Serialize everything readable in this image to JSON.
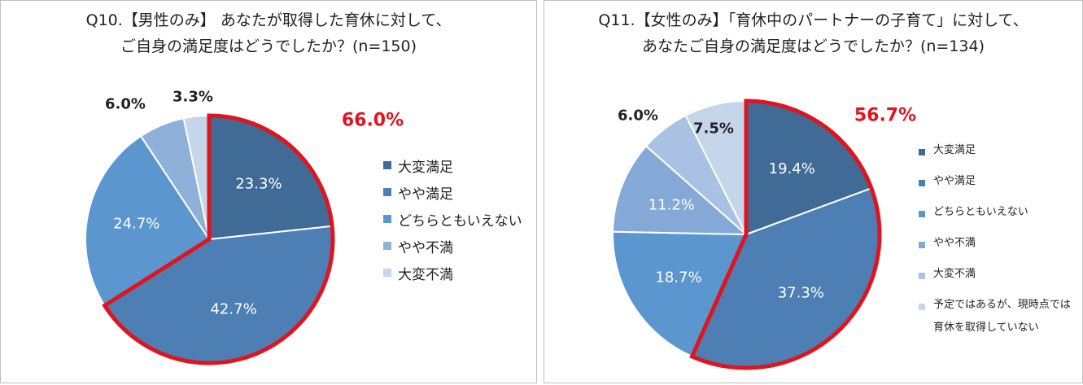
{
  "colors": {
    "highlight_outline": "#e0141e",
    "highlight_text": "#e0141e",
    "slice_border": "#ffffff"
  },
  "chart_data": [
    {
      "type": "pie",
      "title_lines": [
        "Q10.【男性のみ】 あなたが取得した育休に対して、",
        "ご自身の満足度はどうでしたか？(n=150)"
      ],
      "categories": [
        "大変満足",
        "やや満足",
        "どちらともいえない",
        "やや不満",
        "大変不満"
      ],
      "values": [
        23.3,
        42.7,
        24.7,
        6.0,
        3.3
      ],
      "value_labels": [
        "23.3%",
        "42.7%",
        "24.7%",
        "6.0%",
        "3.3%"
      ],
      "colors": [
        "#3f6b96",
        "#4d7fb5",
        "#5b96cf",
        "#8fb1d9",
        "#c5d5ea"
      ],
      "highlight": {
        "label": "66.0%",
        "categories": [
          "大変満足",
          "やや満足"
        ]
      },
      "legend_position": "right"
    },
    {
      "type": "pie",
      "title_lines": [
        "Q11.【女性のみ】「育休中のパートナーの子育て」に対して、",
        "あなたご自身の満足度はどうでしたか？(n=134)"
      ],
      "categories": [
        "大変満足",
        "やや満足",
        "どちらともいえない",
        "やや不満",
        "大変不満",
        "予定ではあるが、現時点では\n育休を取得していない"
      ],
      "values": [
        19.4,
        37.3,
        18.7,
        11.2,
        6.0,
        7.5
      ],
      "value_labels": [
        "19.4%",
        "37.3%",
        "18.7%",
        "11.2%",
        "6.0%",
        "7.5%"
      ],
      "colors": [
        "#3f6b96",
        "#4d7fb5",
        "#5b96cf",
        "#85a9d6",
        "#a9c2e3",
        "#c5d5ea"
      ],
      "highlight": {
        "label": "56.7%",
        "categories": [
          "大変満足",
          "やや満足"
        ]
      },
      "legend_position": "right"
    }
  ]
}
